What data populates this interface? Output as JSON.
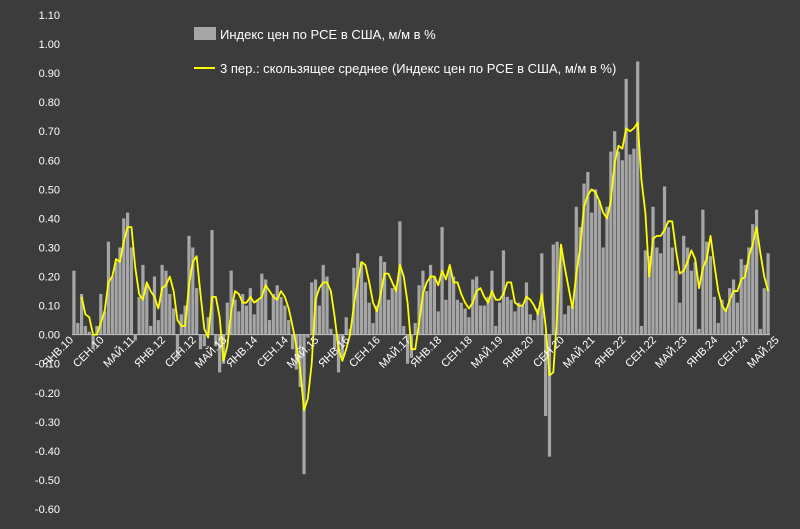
{
  "chart_data": {
    "type": "bar",
    "title": "",
    "xlabel": "",
    "ylabel": "",
    "ylim": [
      -0.6,
      1.1
    ],
    "yticks": [
      "-0.60",
      "-0.50",
      "-0.40",
      "-0.30",
      "-0.20",
      "-0.10",
      "0.00",
      "0.10",
      "0.20",
      "0.30",
      "0.40",
      "0.50",
      "0.60",
      "0.70",
      "0.80",
      "0.90",
      "1.00",
      "1.10"
    ],
    "x_tick_labels": [
      {
        "label": "ЯНВ.10",
        "index": 0
      },
      {
        "label": "СЕН.10",
        "index": 8
      },
      {
        "label": "МАЙ.11",
        "index": 16
      },
      {
        "label": "ЯНВ.12",
        "index": 24
      },
      {
        "label": "СЕН.12",
        "index": 32
      },
      {
        "label": "МАЙ.13",
        "index": 40
      },
      {
        "label": "ЯНВ.14",
        "index": 48
      },
      {
        "label": "СЕН.14",
        "index": 56
      },
      {
        "label": "МАЙ.15",
        "index": 64
      },
      {
        "label": "ЯНВ.16",
        "index": 72
      },
      {
        "label": "СЕН.16",
        "index": 80
      },
      {
        "label": "МАЙ.17",
        "index": 88
      },
      {
        "label": "ЯНВ.18",
        "index": 96
      },
      {
        "label": "СЕН.18",
        "index": 104
      },
      {
        "label": "МАЙ.19",
        "index": 112
      },
      {
        "label": "ЯНВ.20",
        "index": 120
      },
      {
        "label": "СЕН.20",
        "index": 128
      },
      {
        "label": "МАЙ.21",
        "index": 136
      },
      {
        "label": "ЯНВ.22",
        "index": 144
      },
      {
        "label": "СЕН.22",
        "index": 152
      },
      {
        "label": "МАЙ.23",
        "index": 160
      },
      {
        "label": "ЯНВ.24",
        "index": 168
      },
      {
        "label": "СЕН.24",
        "index": 176
      },
      {
        "label": "МАЙ.25",
        "index": 184
      }
    ],
    "legend": [
      {
        "label": "Индекс цен по PCE в США, м/м в %",
        "kind": "bar",
        "color": "#a6a6a6"
      },
      {
        "label": "3 пер.: скользящее среднее (Индекс цен по PCE в США, м/м в %)",
        "kind": "line",
        "color": "#ffff00"
      }
    ],
    "legend_position": "top-center",
    "grid": false,
    "series": [
      {
        "name": "Индекс цен по PCE в США, м/м в %",
        "type": "bar",
        "color": "#a6a6a6",
        "values": [
          0.22,
          0.04,
          0.14,
          0.03,
          0.01,
          -0.05,
          0.03,
          0.14,
          0.08,
          0.32,
          0.2,
          0.25,
          0.3,
          0.4,
          0.42,
          0.3,
          -0.02,
          0.13,
          0.24,
          0.17,
          0.03,
          0.2,
          0.05,
          0.24,
          0.22,
          0.14,
          0.09,
          -0.08,
          0.07,
          0.1,
          0.34,
          0.3,
          0.16,
          -0.05,
          -0.04,
          0.06,
          0.36,
          -0.04,
          -0.13,
          -0.1,
          0.11,
          0.22,
          0.12,
          0.08,
          0.14,
          0.1,
          0.16,
          0.07,
          0.12,
          0.21,
          0.19,
          0.05,
          0.14,
          0.17,
          0.13,
          0.1,
          0.05,
          -0.05,
          -0.12,
          -0.18,
          -0.48,
          -0.01,
          0.18,
          0.19,
          0.1,
          0.24,
          0.2,
          0.02,
          -0.05,
          -0.13,
          -0.08,
          0.06,
          0.02,
          0.23,
          0.28,
          0.25,
          0.18,
          0.11,
          0.04,
          0.1,
          0.27,
          0.25,
          0.12,
          0.16,
          0.17,
          0.39,
          0.03,
          -0.1,
          -0.08,
          0.04,
          0.17,
          0.22,
          0.15,
          0.24,
          0.2,
          0.08,
          0.37,
          0.12,
          0.23,
          0.2,
          0.12,
          0.11,
          0.09,
          0.06,
          0.19,
          0.2,
          0.1,
          0.1,
          0.13,
          0.22,
          0.03,
          0.11,
          0.29,
          0.13,
          0.12,
          0.08,
          0.11,
          0.1,
          0.18,
          0.07,
          0.05,
          0.09,
          0.28,
          -0.28,
          -0.42,
          0.31,
          0.32,
          0.3,
          0.07,
          0.1,
          0.1,
          0.44,
          0.37,
          0.52,
          0.56,
          0.42,
          0.5,
          0.46,
          0.3,
          0.44,
          0.63,
          0.7,
          0.63,
          0.6,
          0.88,
          0.62,
          0.64,
          0.94,
          0.03,
          0.29,
          0.27,
          0.44,
          0.3,
          0.28,
          0.51,
          0.37,
          0.3,
          0.22,
          0.11,
          0.34,
          0.3,
          0.22,
          0.25,
          0.02,
          0.43,
          0.32,
          0.27,
          0.13,
          0.04,
          0.12,
          0.09,
          0.16,
          0.19,
          0.11,
          0.26,
          0.24,
          0.3,
          0.38,
          0.43,
          0.02,
          0.16,
          0.28
        ]
      },
      {
        "name": "3 пер.: скользящее среднее (Индекс цен по PCE в США, м/м в %)",
        "type": "line",
        "color": "#ffff00",
        "values": [
          null,
          null,
          0.13,
          0.07,
          0.06,
          0.0,
          0.0,
          0.04,
          0.08,
          0.18,
          0.2,
          0.26,
          0.25,
          0.32,
          0.37,
          0.37,
          0.23,
          0.14,
          0.12,
          0.18,
          0.15,
          0.13,
          0.09,
          0.16,
          0.17,
          0.2,
          0.15,
          0.05,
          0.03,
          0.03,
          0.17,
          0.25,
          0.27,
          0.14,
          0.02,
          -0.01,
          0.13,
          0.13,
          0.06,
          -0.09,
          -0.04,
          0.08,
          0.15,
          0.14,
          0.11,
          0.11,
          0.13,
          0.11,
          0.12,
          0.13,
          0.17,
          0.15,
          0.13,
          0.12,
          0.15,
          0.13,
          0.09,
          0.03,
          -0.04,
          -0.12,
          -0.26,
          -0.22,
          -0.1,
          0.12,
          0.16,
          0.18,
          0.18,
          0.15,
          0.06,
          -0.05,
          -0.09,
          -0.05,
          0.0,
          0.1,
          0.18,
          0.25,
          0.24,
          0.18,
          0.11,
          0.08,
          0.14,
          0.21,
          0.21,
          0.18,
          0.15,
          0.24,
          0.2,
          0.11,
          -0.05,
          -0.05,
          0.04,
          0.14,
          0.18,
          0.2,
          0.2,
          0.17,
          0.22,
          0.19,
          0.24,
          0.18,
          0.18,
          0.14,
          0.11,
          0.09,
          0.11,
          0.15,
          0.16,
          0.13,
          0.11,
          0.15,
          0.12,
          0.12,
          0.14,
          0.18,
          0.18,
          0.11,
          0.1,
          0.1,
          0.13,
          0.12,
          0.1,
          0.07,
          0.14,
          0.03,
          -0.14,
          -0.13,
          0.07,
          0.31,
          0.23,
          0.16,
          0.09,
          0.21,
          0.3,
          0.44,
          0.48,
          0.5,
          0.49,
          0.46,
          0.42,
          0.4,
          0.46,
          0.59,
          0.65,
          0.64,
          0.71,
          0.7,
          0.71,
          0.73,
          0.53,
          0.42,
          0.2,
          0.33,
          0.34,
          0.34,
          0.36,
          0.39,
          0.39,
          0.29,
          0.21,
          0.22,
          0.25,
          0.29,
          0.26,
          0.16,
          0.23,
          0.26,
          0.34,
          0.24,
          0.15,
          0.1,
          0.08,
          0.12,
          0.15,
          0.15,
          0.19,
          0.2,
          0.27,
          0.31,
          0.37,
          0.28,
          0.2,
          0.15
        ]
      }
    ]
  }
}
